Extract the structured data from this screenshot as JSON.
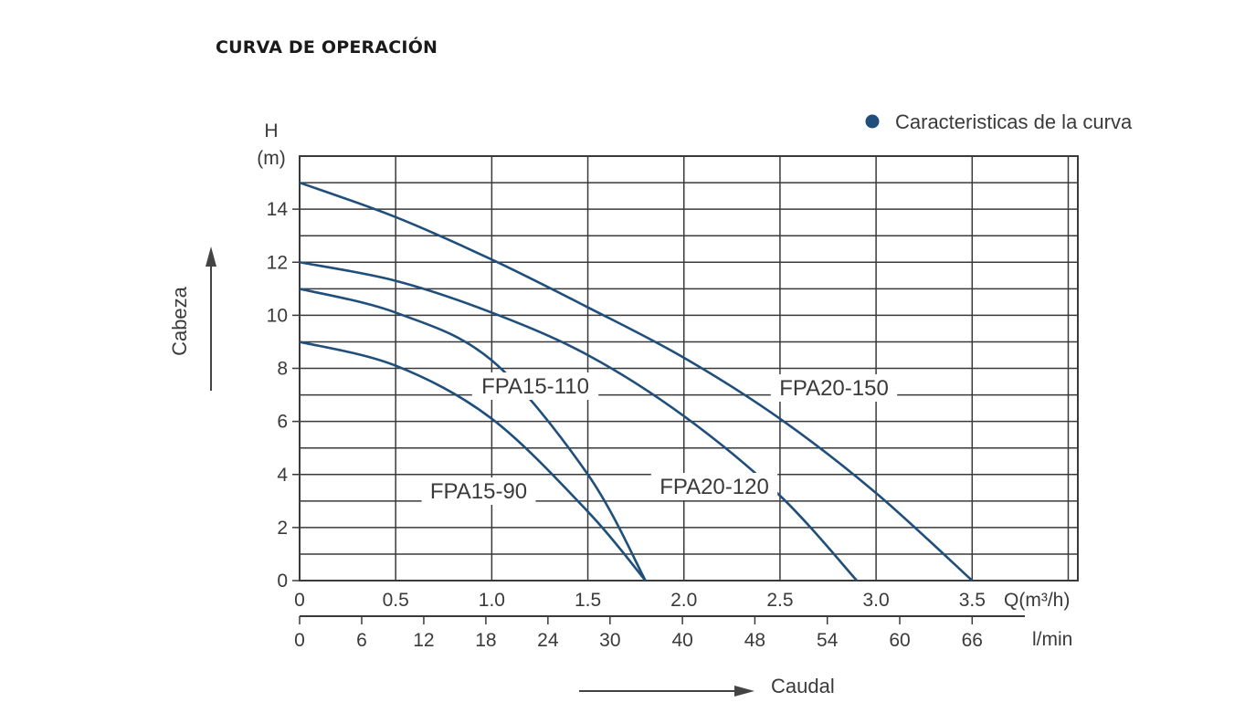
{
  "page": {
    "title": "CURVA DE OPERACIÓN"
  },
  "colors": {
    "curve": "#1f4f7a",
    "grid": "#3a3a3a",
    "legend_dot": "#1f4f7a",
    "text": "#3a3a3a"
  },
  "chart_data": {
    "type": "line",
    "title": "",
    "legend": {
      "label": "Caracteristicas de la curva",
      "placement": "top-right"
    },
    "y_axis": {
      "label_line1": "H",
      "label_line2": "(m)",
      "ticks": [
        "0",
        "2",
        "4",
        "6",
        "8",
        "10",
        "12",
        "14"
      ],
      "range": [
        0,
        16
      ],
      "side_label": "Cabeza"
    },
    "x_axis": {
      "unit": "Q(m³/h)",
      "ticks": [
        "0",
        "0.5",
        "1.0",
        "1.5",
        "2.0",
        "2.5",
        "3.0",
        "3.5"
      ],
      "range": [
        0,
        4.05
      ]
    },
    "x_axis_2": {
      "unit": "l/min",
      "ticks": [
        "0",
        "6",
        "12",
        "18",
        "24",
        "30",
        "40",
        "48",
        "54",
        "60",
        "66"
      ]
    },
    "x_caption": "Caudal",
    "grid": true,
    "series": [
      {
        "name": "FPA20-150",
        "x": [
          0,
          0.5,
          1.0,
          1.5,
          2.0,
          2.5,
          3.0,
          3.5
        ],
        "y": [
          15,
          13.7,
          12.1,
          10.3,
          8.4,
          6.1,
          3.3,
          0
        ]
      },
      {
        "name": "FPA20-120",
        "x": [
          0,
          0.5,
          1.0,
          1.5,
          2.0,
          2.5,
          2.9
        ],
        "y": [
          12,
          11.3,
          10.1,
          8.5,
          6.2,
          3.2,
          0
        ]
      },
      {
        "name": "FPA15-110",
        "x": [
          0,
          0.5,
          1.0,
          1.5,
          1.8
        ],
        "y": [
          11,
          10.1,
          8.3,
          4.0,
          0
        ]
      },
      {
        "name": "FPA15-90",
        "x": [
          0,
          0.5,
          1.0,
          1.5,
          1.8
        ],
        "y": [
          9,
          8.1,
          6.1,
          2.6,
          0
        ]
      }
    ]
  }
}
